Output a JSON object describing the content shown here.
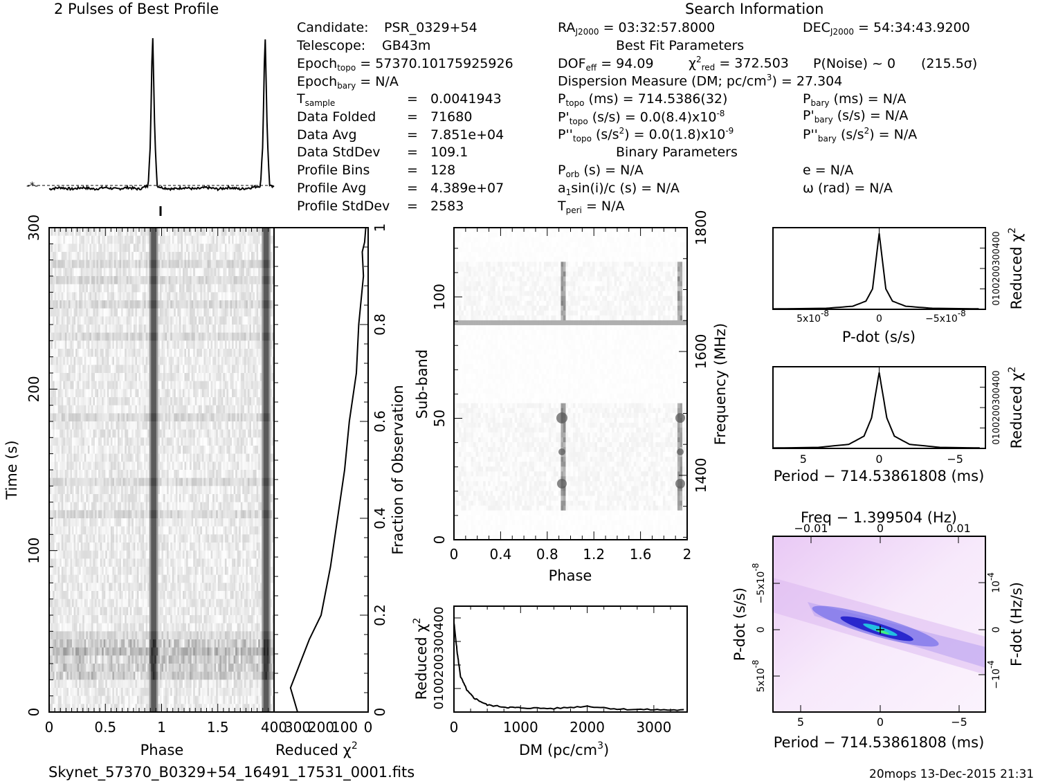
{
  "titles": {
    "profile": "2 Pulses of Best Profile",
    "search": "Search Information",
    "filename": "Skynet_57370_B0329+54_16491_17531_0001.fits",
    "footer": "20mops 13-Dec-2015 21:31"
  },
  "info_left": [
    {
      "label": "Candidate:",
      "value": "PSR_0329+54"
    },
    {
      "label": "Telescope:",
      "value": "GB43m"
    },
    {
      "label": "Epoch",
      "sub": "topo",
      "value": "= 57370.10175925926"
    },
    {
      "label": "Epoch",
      "sub": "bary",
      "value": "= N/A"
    },
    {
      "label": "T",
      "sub": "sample",
      "value": "0.0041943"
    },
    {
      "label": "Data Folded",
      "value": "71680"
    },
    {
      "label": "Data Avg",
      "value": "7.851e+04"
    },
    {
      "label": "Data StdDev",
      "value": "109.1"
    },
    {
      "label": "Profile Bins",
      "value": "128"
    },
    {
      "label": "Profile Avg",
      "value": "4.389e+07"
    },
    {
      "label": "Profile StdDev",
      "value": "2583"
    }
  ],
  "info_mid": {
    "ra": "= 03:32:57.8000",
    "best_fit_header": "Best Fit Parameters",
    "dof": "= 94.09",
    "chi2": "= 372.503",
    "pnoise": "P(Noise) ~ 0",
    "sigma": "(215.5σ)",
    "dm_label": "Dispersion Measure (DM; pc/cm",
    "dm_value": ") = 27.304",
    "ptopo": "(ms) =  714.5386(32)",
    "pdtopo": "(s/s) = 0.0(8.4)x10",
    "pdtopo_exp": "-8",
    "pddtopo": "(s/s",
    "pddtopo_val": ") = 0.0(1.8)x10",
    "pddtopo_exp": "-9",
    "binary_header": "Binary Parameters",
    "porb": "(s) = N/A",
    "a1": "a",
    "a1_rest": "sin(i)/c (s) = N/A",
    "tperi": "= N/A"
  },
  "info_right": {
    "dec": "= 54:34:43.9200",
    "pbary": "(ms) = N/A",
    "pdbary": "(s/s) = N/A",
    "pddbary": "(s/s",
    "pddbary_val": ") = N/A",
    "e": "e = N/A",
    "omega": "ω (rad) = N/A"
  },
  "chart_data": [
    {
      "type": "line",
      "name": "profile",
      "title": "2 Pulses of Best Profile",
      "x": [
        0,
        0.1,
        0.2,
        0.3,
        0.4,
        0.5,
        0.6,
        0.7,
        0.8,
        0.88,
        0.9,
        0.92,
        0.94,
        0.96,
        1.0,
        1.1,
        1.2,
        1.3,
        1.4,
        1.5,
        1.6,
        1.7,
        1.8,
        1.88,
        1.9,
        1.92,
        1.94,
        1.96,
        2.0
      ],
      "values": [
        0.02,
        0.03,
        0.02,
        0.03,
        0.02,
        0.03,
        0.02,
        0.03,
        0.02,
        0.04,
        0.3,
        1.0,
        0.35,
        0.04,
        0.03,
        0.02,
        0.03,
        0.02,
        0.03,
        0.02,
        0.03,
        0.02,
        0.03,
        0.04,
        0.3,
        1.0,
        0.35,
        0.04,
        0.03
      ]
    },
    {
      "type": "heatmap",
      "name": "time-phase",
      "xlabel": "Phase",
      "ylabel": "Time (s)",
      "xticks": [
        "0",
        "0.5",
        "1",
        "1.5"
      ],
      "yticks": [
        "0",
        "100",
        "200",
        "300"
      ],
      "right_ticks": [
        "0.2",
        "0.4",
        "0.6",
        "0.8",
        "1"
      ],
      "right_label": "Fraction of Observation",
      "xlim": [
        0,
        2
      ],
      "ylim": [
        0,
        300
      ]
    },
    {
      "type": "line",
      "name": "time-chi2",
      "xlabel": "Reduced χ",
      "xticks": [
        "400",
        "300",
        "200",
        "100",
        "0"
      ],
      "x": [
        300,
        330,
        290,
        250,
        200,
        160,
        130,
        100,
        80,
        50,
        40,
        30,
        20,
        25,
        15,
        10
      ],
      "y": [
        0,
        0.05,
        0.1,
        0.15,
        0.2,
        0.3,
        0.4,
        0.5,
        0.6,
        0.7,
        0.8,
        0.85,
        0.9,
        0.95,
        0.97,
        1.0
      ]
    },
    {
      "type": "heatmap",
      "name": "subband-phase",
      "xlabel": "Phase",
      "ylabel": "Sub-band",
      "right_label": "Frequency (MHz)",
      "xticks": [
        "0",
        "0.4",
        "0.8",
        "1.2",
        "1.6",
        "2"
      ],
      "yticks": [
        "0",
        "50",
        "100"
      ],
      "right_ticks": [
        "1400",
        "1600",
        "1800"
      ]
    },
    {
      "type": "line",
      "name": "dm-chi2",
      "xlabel": "DM (pc/cm",
      "ylabel": "Reduced χ",
      "xticks": [
        "0",
        "1000",
        "2000",
        "3000"
      ],
      "yticks": [
        "0",
        "100",
        "200",
        "300",
        "400"
      ],
      "x": [
        0,
        50,
        100,
        200,
        300,
        500,
        800,
        1000,
        1500,
        2000,
        2500,
        3000,
        3500
      ],
      "values": [
        380,
        250,
        150,
        90,
        60,
        30,
        20,
        18,
        15,
        25,
        12,
        10,
        8
      ]
    },
    {
      "type": "line",
      "name": "pdot-chi2",
      "xlabel": "P-dot (s/s)",
      "ylabel": "Reduced χ",
      "xticks": [
        "5x10",
        "0",
        "−5x10"
      ],
      "xtick_exp": "-8",
      "yticks": [
        "0",
        "100",
        "200",
        "300",
        "400"
      ],
      "x": [
        8,
        4,
        2,
        1,
        0.5,
        0,
        -0.5,
        -1,
        -2,
        -4,
        -8
      ],
      "values": [
        2,
        5,
        15,
        40,
        100,
        372,
        100,
        40,
        15,
        5,
        2
      ]
    },
    {
      "type": "line",
      "name": "period-chi2",
      "xlabel": "Period − 714.53861808 (ms)",
      "ylabel": "Reduced χ",
      "xticks": [
        "5",
        "0",
        "−5"
      ],
      "yticks": [
        "0",
        "100",
        "200",
        "300",
        "400"
      ],
      "x": [
        7,
        4,
        2,
        1,
        0.5,
        0,
        -0.5,
        -1,
        -2,
        -4,
        -7
      ],
      "values": [
        2,
        5,
        20,
        60,
        150,
        372,
        150,
        60,
        20,
        5,
        2
      ]
    },
    {
      "type": "heatmap",
      "name": "pdot-period",
      "top_label": "Freq − 1.399504 (Hz)",
      "top_ticks": [
        "−0.01",
        "0",
        "0.01"
      ],
      "xlabel": "Period − 714.53861808 (ms)",
      "xticks": [
        "5",
        "0",
        "−5"
      ],
      "ylabel": "P-dot (s/s)",
      "yticks": [
        "−5x10",
        "0",
        "5x10"
      ],
      "ytick_exp": "-8",
      "right_label": "F-dot (Hz/s)",
      "right_ticks": [
        "10",
        "0",
        "−10"
      ],
      "right_tick_exp": "-4"
    }
  ]
}
